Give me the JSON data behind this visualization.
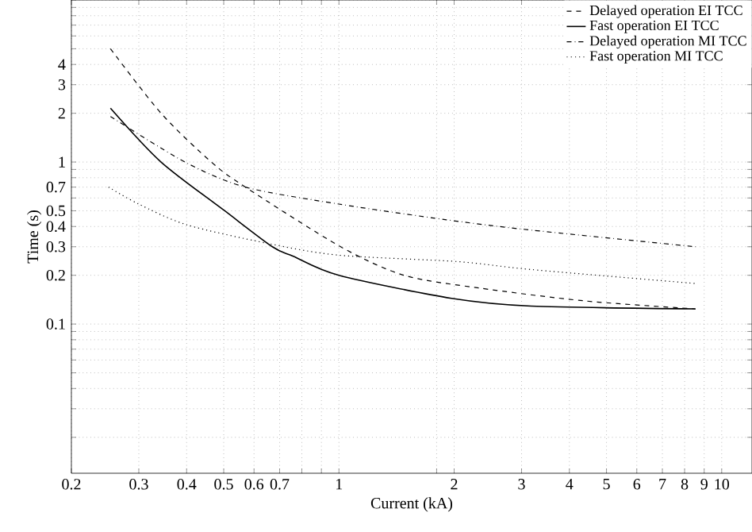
{
  "chart_data": {
    "type": "line",
    "xlabel": "Current (kA)",
    "ylabel": "Time (s)",
    "log": "xy",
    "grid": true,
    "legend": "top right",
    "xlim": [
      0.2,
      12
    ],
    "ylim": [
      0.012,
      10
    ],
    "xticks": [
      0.2,
      0.3,
      0.4,
      0.5,
      0.6,
      0.7,
      {
        "value": 0.8,
        "label": null
      },
      {
        "value": 0.9,
        "label": null
      },
      1,
      {
        "value": 1.8,
        "label": null
      },
      2,
      3,
      4,
      5,
      6,
      7,
      8,
      9,
      10
    ],
    "yticks": [
      {
        "value": 0.02,
        "label": null
      },
      {
        "value": 0.03,
        "label": null
      },
      {
        "value": 0.04,
        "label": null
      },
      {
        "value": 0.05,
        "label": null
      },
      {
        "value": 0.06,
        "label": null
      },
      {
        "value": 0.07,
        "label": null
      },
      {
        "value": 0.08,
        "label": null
      },
      {
        "value": 0.09,
        "label": null
      },
      0.1,
      0.2,
      0.3,
      0.4,
      0.5,
      {
        "value": 0.6,
        "label": null
      },
      0.7,
      {
        "value": 0.8,
        "label": null
      },
      {
        "value": 0.9,
        "label": null
      },
      1,
      2,
      3,
      4,
      {
        "value": 5,
        "label": null
      },
      {
        "value": 6,
        "label": null
      },
      {
        "value": 7,
        "label": null
      },
      {
        "value": 8,
        "label": null
      },
      {
        "value": 9,
        "label": null
      },
      {
        "value": 10,
        "label": null
      }
    ],
    "series": [
      {
        "name": "Delayed operation EI TCC",
        "color": "#000000",
        "line_style": "dashed",
        "x": [
          0.253,
          0.343,
          0.464,
          0.57,
          1.01,
          1.48,
          2.32,
          4.38,
          8.54
        ],
        "values": [
          5.0,
          2.0,
          1.0,
          0.7,
          0.3,
          0.2,
          0.167,
          0.139,
          0.124
        ]
      },
      {
        "name": "Fast operation EI TCC",
        "color": "#000000",
        "line_style": "solid",
        "x": [
          0.253,
          0.343,
          0.503,
          0.67,
          0.76,
          1.0,
          1.97,
          3.18,
          8.54
        ],
        "values": [
          2.15,
          1.0,
          0.5,
          0.3,
          0.262,
          0.2,
          0.144,
          0.129,
          0.124
        ]
      },
      {
        "name": "Delayed operation MI TCC",
        "color": "#000000",
        "line_style": "dashdot",
        "x": [
          0.253,
          0.396,
          0.57,
          1.0,
          1.91,
          3.18,
          8.54
        ],
        "values": [
          1.91,
          1.0,
          0.7,
          0.55,
          0.44,
          0.38,
          0.3
        ]
      },
      {
        "name": "Fast operation MI TCC",
        "color": "#000000",
        "line_style": "dotted",
        "x": [
          0.25,
          0.3,
          0.4,
          0.65,
          1.0,
          2.04,
          3.18,
          8.54
        ],
        "values": [
          0.7,
          0.55,
          0.41,
          0.315,
          0.266,
          0.243,
          0.217,
          0.178
        ]
      }
    ]
  }
}
